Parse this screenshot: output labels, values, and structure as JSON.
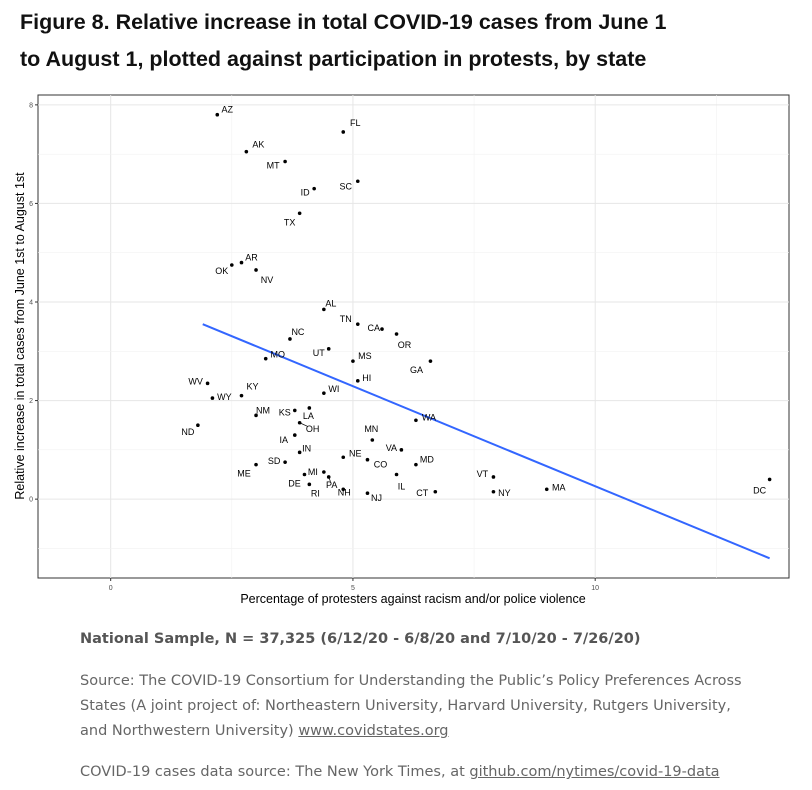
{
  "figure": {
    "title_line1": "Figure 8. Relative increase in total COVID-19 cases from June 1",
    "title_line2": "to August 1, plotted against participation in protests, by state"
  },
  "chart_data": {
    "type": "scatter",
    "xlabel": "Percentage of protesters against racism and/or police violence",
    "ylabel": "Relative increase in total cases from June 1st to August 1st",
    "xlim": [
      -1.5,
      14.0
    ],
    "ylim": [
      -1.6,
      8.2
    ],
    "x_ticks": [
      0,
      5,
      10
    ],
    "y_ticks": [
      0,
      2,
      4,
      6,
      8
    ],
    "grid": true,
    "points": [
      {
        "label": "AZ",
        "x": 2.2,
        "y": 7.8
      },
      {
        "label": "FL",
        "x": 4.8,
        "y": 7.45
      },
      {
        "label": "AK",
        "x": 2.8,
        "y": 7.05
      },
      {
        "label": "MT",
        "x": 3.6,
        "y": 6.85
      },
      {
        "label": "SC",
        "x": 5.1,
        "y": 6.45
      },
      {
        "label": "ID",
        "x": 4.2,
        "y": 6.3
      },
      {
        "label": "TX",
        "x": 3.9,
        "y": 5.8
      },
      {
        "label": "AR",
        "x": 2.7,
        "y": 4.8
      },
      {
        "label": "OK",
        "x": 2.5,
        "y": 4.75
      },
      {
        "label": "NV",
        "x": 3.0,
        "y": 4.65
      },
      {
        "label": "AL",
        "x": 4.4,
        "y": 3.85
      },
      {
        "label": "TN",
        "x": 5.1,
        "y": 3.55
      },
      {
        "label": "CA",
        "x": 5.6,
        "y": 3.45
      },
      {
        "label": "NC",
        "x": 3.7,
        "y": 3.25
      },
      {
        "label": "OR",
        "x": 5.9,
        "y": 3.35
      },
      {
        "label": "UT",
        "x": 4.5,
        "y": 3.05
      },
      {
        "label": "MO",
        "x": 3.2,
        "y": 2.85
      },
      {
        "label": "MS",
        "x": 5.0,
        "y": 2.8
      },
      {
        "label": "GA",
        "x": 6.6,
        "y": 2.8
      },
      {
        "label": "HI",
        "x": 5.1,
        "y": 2.4
      },
      {
        "label": "WV",
        "x": 2.0,
        "y": 2.35
      },
      {
        "label": "WY",
        "x": 2.1,
        "y": 2.05
      },
      {
        "label": "KY",
        "x": 2.7,
        "y": 2.1
      },
      {
        "label": "WI",
        "x": 4.4,
        "y": 2.15
      },
      {
        "label": "NM",
        "x": 3.0,
        "y": 1.7
      },
      {
        "label": "KS",
        "x": 3.8,
        "y": 1.8
      },
      {
        "label": "LA",
        "x": 4.1,
        "y": 1.85
      },
      {
        "label": "WA",
        "x": 6.3,
        "y": 1.6
      },
      {
        "label": "ND",
        "x": 1.8,
        "y": 1.5
      },
      {
        "label": "OH",
        "x": 3.9,
        "y": 1.55
      },
      {
        "label": "IA",
        "x": 3.8,
        "y": 1.3
      },
      {
        "label": "MN",
        "x": 5.4,
        "y": 1.2
      },
      {
        "label": "VA",
        "x": 6.0,
        "y": 1.0
      },
      {
        "label": "IN",
        "x": 3.9,
        "y": 0.95
      },
      {
        "label": "NE",
        "x": 4.8,
        "y": 0.85
      },
      {
        "label": "CO",
        "x": 5.3,
        "y": 0.8
      },
      {
        "label": "SD",
        "x": 3.6,
        "y": 0.75
      },
      {
        "label": "ME",
        "x": 3.0,
        "y": 0.7
      },
      {
        "label": "MD",
        "x": 6.3,
        "y": 0.7
      },
      {
        "label": "MI",
        "x": 4.4,
        "y": 0.55
      },
      {
        "label": "DE",
        "x": 4.0,
        "y": 0.5
      },
      {
        "label": "IL",
        "x": 5.9,
        "y": 0.5
      },
      {
        "label": "VT",
        "x": 7.9,
        "y": 0.45
      },
      {
        "label": "PA",
        "x": 4.5,
        "y": 0.45
      },
      {
        "label": "RI",
        "x": 4.1,
        "y": 0.3
      },
      {
        "label": "NY",
        "x": 7.9,
        "y": 0.15
      },
      {
        "label": "MA",
        "x": 9.0,
        "y": 0.2
      },
      {
        "label": "CT",
        "x": 6.7,
        "y": 0.15
      },
      {
        "label": "NH",
        "x": 4.8,
        "y": 0.2
      },
      {
        "label": "NJ",
        "x": 5.3,
        "y": 0.12
      },
      {
        "label": "DC",
        "x": 13.6,
        "y": 0.4
      }
    ],
    "trend_line": {
      "x": [
        1.9,
        13.6
      ],
      "y": [
        3.55,
        -1.2
      ],
      "color": "#3366ff"
    }
  },
  "notes": {
    "sample": "National Sample, N = 37,325 (6/12/20 - 6/8/20 and 7/10/20 - 7/26/20)",
    "source_prefix": "Source: The COVID-19 Consortium for Understanding the Public’s Policy Preferences Across States (A joint project of: Northeastern University, Harvard University, Rutgers University, and Northwestern University) ",
    "source_link": "www.covidstates.org",
    "nyt_prefix": "COVID-19 cases data source: The New York Times, at ",
    "nyt_link": "github.com/nytimes/covid-19-data"
  }
}
